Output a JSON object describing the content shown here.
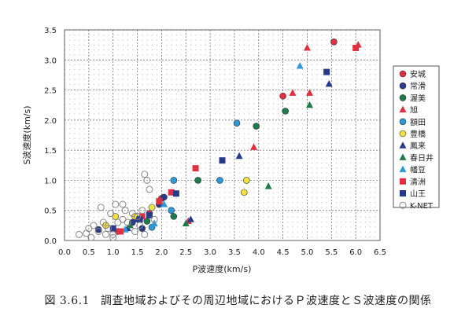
{
  "caption": {
    "number": "図 3.6.1",
    "text": "調査地域およびその周辺地域におけるＰ波速度とＳ波速度の関係"
  },
  "chart_data": {
    "type": "scatter",
    "xlabel": "P波速度(km/s)",
    "ylabel": "S波速度(km/s)",
    "xlim": [
      0.0,
      6.5
    ],
    "ylim": [
      0.0,
      3.5
    ],
    "xticks": [
      "0.0",
      "0.5",
      "1.0",
      "1.5",
      "2.0",
      "2.5",
      "3.0",
      "3.5",
      "4.0",
      "4.5",
      "5.0",
      "5.5",
      "6.0",
      "6.5"
    ],
    "yticks": [
      "0.0",
      "0.5",
      "1.0",
      "1.5",
      "2.0",
      "2.5",
      "3.0",
      "3.5"
    ],
    "grid": true,
    "legend_position": "right",
    "series": [
      {
        "name": "安城",
        "marker": "circle",
        "color": "#e03040",
        "points": [
          [
            4.5,
            2.4
          ],
          [
            5.55,
            3.3
          ],
          [
            1.75,
            0.45
          ],
          [
            2.0,
            0.7
          ],
          [
            1.1,
            0.15
          ]
        ]
      },
      {
        "name": "常滑",
        "marker": "circle",
        "color": "#2a3a8a",
        "points": [
          [
            0.7,
            0.18
          ],
          [
            1.4,
            0.3
          ],
          [
            1.95,
            0.6
          ],
          [
            2.05,
            0.72
          ],
          [
            1.6,
            0.2
          ]
        ]
      },
      {
        "name": "渥美",
        "marker": "circle",
        "color": "#1f7a4c",
        "points": [
          [
            3.95,
            1.9
          ],
          [
            4.55,
            2.15
          ],
          [
            2.75,
            1.0
          ],
          [
            2.25,
            0.4
          ],
          [
            1.7,
            0.32
          ]
        ]
      },
      {
        "name": "旭",
        "marker": "triangle",
        "color": "#e03040",
        "points": [
          [
            3.9,
            1.55
          ],
          [
            4.7,
            2.45
          ],
          [
            5.05,
            2.45
          ],
          [
            5.0,
            3.2
          ],
          [
            6.05,
            3.25
          ],
          [
            2.55,
            0.32
          ]
        ]
      },
      {
        "name": "額田",
        "marker": "circle",
        "color": "#2a9ad8",
        "points": [
          [
            3.55,
            1.95
          ],
          [
            3.2,
            1.0
          ],
          [
            2.2,
            0.5
          ],
          [
            2.25,
            1.0
          ],
          [
            1.8,
            0.22
          ]
        ]
      },
      {
        "name": "豊橋",
        "marker": "circle",
        "color": "#f0e040",
        "points": [
          [
            3.75,
            1.0
          ],
          [
            3.7,
            0.8
          ],
          [
            1.05,
            0.4
          ],
          [
            1.8,
            0.55
          ],
          [
            0.85,
            0.25
          ],
          [
            1.45,
            0.4
          ]
        ]
      },
      {
        "name": "鳳来",
        "marker": "triangle",
        "color": "#2a3a8a",
        "points": [
          [
            5.45,
            2.6
          ],
          [
            3.6,
            1.4
          ],
          [
            2.6,
            0.35
          ],
          [
            1.5,
            0.35
          ],
          [
            1.3,
            0.2
          ]
        ]
      },
      {
        "name": "春日井",
        "marker": "triangle",
        "color": "#1f7a4c",
        "points": [
          [
            5.05,
            2.25
          ],
          [
            4.2,
            0.9
          ],
          [
            2.5,
            0.28
          ],
          [
            1.35,
            0.25
          ]
        ]
      },
      {
        "name": "幡豆",
        "marker": "triangle",
        "color": "#2a9ad8",
        "points": [
          [
            4.85,
            2.9
          ],
          [
            1.85,
            0.28
          ],
          [
            1.25,
            0.18
          ],
          [
            2.05,
            0.6
          ]
        ]
      },
      {
        "name": "清洲",
        "marker": "square",
        "color": "#e03040",
        "points": [
          [
            6.0,
            3.2
          ],
          [
            2.7,
            1.2
          ],
          [
            2.2,
            0.8
          ],
          [
            1.95,
            0.65
          ],
          [
            1.6,
            0.4
          ],
          [
            1.15,
            0.15
          ]
        ]
      },
      {
        "name": "山王",
        "marker": "square",
        "color": "#2a3a8a",
        "points": [
          [
            5.4,
            2.8
          ],
          [
            3.25,
            1.33
          ],
          [
            2.3,
            0.78
          ],
          [
            1.75,
            0.42
          ],
          [
            1.55,
            0.35
          ],
          [
            1.0,
            0.2
          ]
        ]
      },
      {
        "name": "K-NET",
        "marker": "circle-open",
        "color": "#888888",
        "points": [
          [
            0.3,
            0.1
          ],
          [
            0.45,
            0.12
          ],
          [
            0.5,
            0.2
          ],
          [
            0.6,
            0.25
          ],
          [
            0.7,
            0.15
          ],
          [
            0.8,
            0.3
          ],
          [
            0.9,
            0.2
          ],
          [
            0.95,
            0.45
          ],
          [
            1.0,
            0.1
          ],
          [
            1.05,
            0.6
          ],
          [
            1.1,
            0.3
          ],
          [
            1.2,
            0.35
          ],
          [
            1.25,
            0.5
          ],
          [
            1.3,
            0.3
          ],
          [
            1.4,
            0.45
          ],
          [
            1.45,
            0.15
          ],
          [
            1.5,
            0.4
          ],
          [
            1.55,
            0.25
          ],
          [
            1.6,
            0.5
          ],
          [
            1.65,
            1.1
          ],
          [
            1.7,
            1.0
          ],
          [
            1.75,
            0.85
          ],
          [
            1.8,
            0.55
          ],
          [
            1.85,
            0.35
          ],
          [
            1.2,
            0.6
          ],
          [
            0.75,
            0.55
          ],
          [
            1.0,
            0.05
          ],
          [
            0.55,
            0.05
          ],
          [
            1.65,
            0.1
          ],
          [
            0.85,
            0.1
          ]
        ]
      }
    ]
  }
}
